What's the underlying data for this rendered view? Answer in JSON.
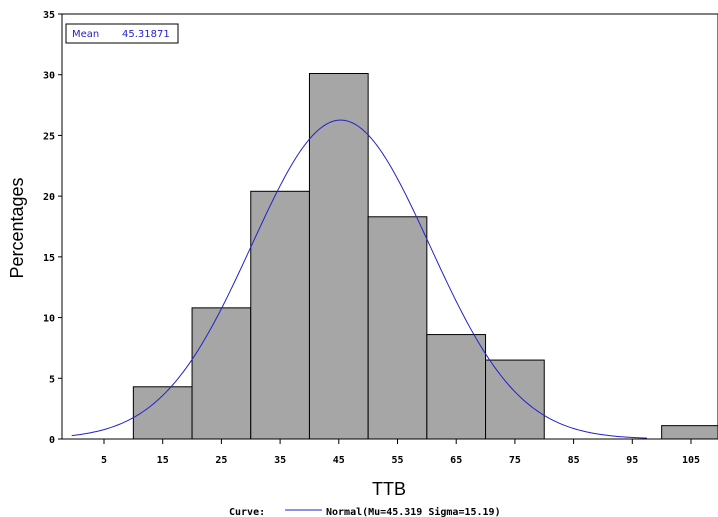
{
  "chart_data": {
    "type": "bar",
    "xlabel": "TTB",
    "ylabel": "Percentages",
    "x_ticks": [
      "5",
      "15",
      "25",
      "35",
      "45",
      "55",
      "65",
      "75",
      "85",
      "95",
      "105"
    ],
    "y_ticks": [
      "0",
      "5",
      "10",
      "15",
      "20",
      "25",
      "30",
      "35"
    ],
    "ylim": [
      0,
      35
    ],
    "bins": [
      {
        "center": 15,
        "value": 4.3
      },
      {
        "center": 25,
        "value": 10.8
      },
      {
        "center": 35,
        "value": 20.4
      },
      {
        "center": 45,
        "value": 30.1
      },
      {
        "center": 55,
        "value": 18.3
      },
      {
        "center": 65,
        "value": 8.6
      },
      {
        "center": 75,
        "value": 6.5
      },
      {
        "center": 105,
        "value": 1.1
      }
    ],
    "bar_color": "#a6a6a6",
    "curve": {
      "type": "normal",
      "mu": 45.319,
      "sigma": 15.19,
      "color": "#2222cc",
      "legend_prefix": "Curve:",
      "legend_label": "Normal(Mu=45.319 Sigma=15.19)"
    },
    "stats": {
      "label": "Mean",
      "value": "45.31871"
    },
    "grid": false
  }
}
